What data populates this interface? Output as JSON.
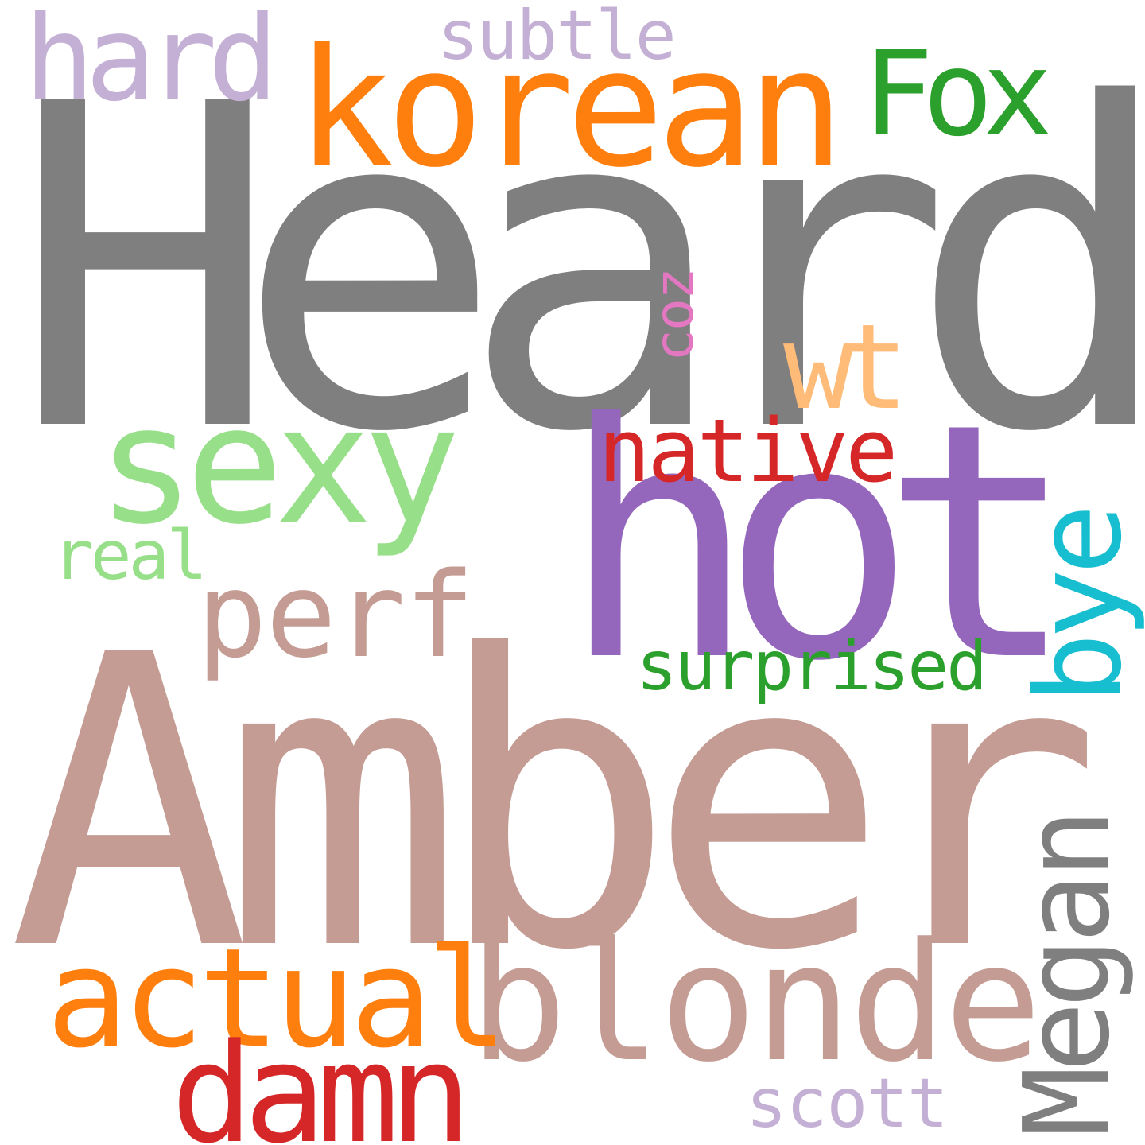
{
  "words": {
    "heard": {
      "text": "Heard",
      "color": "#7f7f7f"
    },
    "amber": {
      "text": "Amber",
      "color": "#c49c94"
    },
    "hot": {
      "text": "hot",
      "color": "#9467bd"
    },
    "korean": {
      "text": "korean",
      "color": "#ff7f0e"
    },
    "sexy": {
      "text": "sexy",
      "color": "#98df8a"
    },
    "blonde": {
      "text": "blonde",
      "color": "#c49c94"
    },
    "actual": {
      "text": "actual",
      "color": "#ff7f0e"
    },
    "damn": {
      "text": "damn",
      "color": "#d62728"
    },
    "hard": {
      "text": "hard",
      "color": "#c5b0d5"
    },
    "fox": {
      "text": "Fox",
      "color": "#2ca02c"
    },
    "perf": {
      "text": "perf",
      "color": "#c49c94"
    },
    "wt": {
      "text": "wt",
      "color": "#ffbb78"
    },
    "native": {
      "text": "native",
      "color": "#d62728"
    },
    "surprised": {
      "text": "surprised",
      "color": "#2ca02c"
    },
    "real": {
      "text": "real",
      "color": "#98df8a"
    },
    "subtle": {
      "text": "subtle",
      "color": "#c5b0d5"
    },
    "scott": {
      "text": "scott",
      "color": "#c5b0d5"
    },
    "bye": {
      "text": "bye",
      "color": "#17becf"
    },
    "megan": {
      "text": "Megan",
      "color": "#7f7f7f"
    },
    "coz": {
      "text": "coz",
      "color": "#e377c2"
    }
  }
}
